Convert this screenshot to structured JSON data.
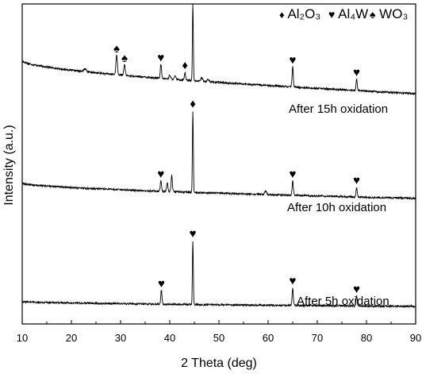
{
  "chart_data": {
    "type": "line",
    "xlabel": "2 Theta (deg)",
    "ylabel": "Intensity (a.u.)",
    "xlim": [
      10,
      90
    ],
    "x_ticks": [
      10,
      20,
      30,
      40,
      50,
      60,
      70,
      80,
      90
    ],
    "y_tick_labels": false,
    "grid": false,
    "legend_position": "top-right",
    "legend": [
      {
        "symbol": "♦",
        "label": "Al₂O₃"
      },
      {
        "symbol": "♥",
        "label": "Al₄W"
      },
      {
        "symbol": "♠",
        "label": "WO₃"
      }
    ],
    "series": [
      {
        "name": "After 15h oxidation",
        "baseline_start": 69,
        "baseline_end": 28,
        "peaks": [
          {
            "x": 22.8,
            "height": 4,
            "width": 0.5,
            "marker": ""
          },
          {
            "x": 29.2,
            "height": 24,
            "width": 0.3,
            "marker": "♠"
          },
          {
            "x": 30.8,
            "height": 13,
            "width": 0.3,
            "marker": "♠"
          },
          {
            "x": 38.2,
            "height": 17,
            "width": 0.25,
            "marker": "♥"
          },
          {
            "x": 40.0,
            "height": 5,
            "width": 0.3,
            "marker": ""
          },
          {
            "x": 41.1,
            "height": 4,
            "width": 0.3,
            "marker": ""
          },
          {
            "x": 43.1,
            "height": 10,
            "width": 0.25,
            "marker": "♦"
          },
          {
            "x": 44.7,
            "height": 97,
            "width": 0.18,
            "marker": "♥"
          },
          {
            "x": 46.5,
            "height": 4,
            "width": 0.4,
            "marker": ""
          },
          {
            "x": 47.8,
            "height": 3,
            "width": 0.4,
            "marker": ""
          },
          {
            "x": 65.0,
            "height": 25,
            "width": 0.25,
            "marker": "♥"
          },
          {
            "x": 78.0,
            "height": 14,
            "width": 0.25,
            "marker": "♥"
          }
        ]
      },
      {
        "name": "After 10h oxidation",
        "baseline_start": 44,
        "baseline_end": 25,
        "peaks": [
          {
            "x": 38.2,
            "height": 13,
            "width": 0.25,
            "marker": "♥"
          },
          {
            "x": 39.5,
            "height": 11,
            "width": 0.25,
            "marker": ""
          },
          {
            "x": 40.4,
            "height": 21,
            "width": 0.25,
            "marker": ""
          },
          {
            "x": 44.7,
            "height": 102,
            "width": 0.18,
            "marker": "♦"
          },
          {
            "x": 59.5,
            "height": 4,
            "width": 0.4,
            "marker": ""
          },
          {
            "x": 65.0,
            "height": 18,
            "width": 0.25,
            "marker": "♥"
          },
          {
            "x": 78.0,
            "height": 12,
            "width": 0.25,
            "marker": "♥"
          }
        ]
      },
      {
        "name": "After 5h oxidation",
        "baseline_start": 28,
        "baseline_end": 22,
        "peaks": [
          {
            "x": 38.3,
            "height": 17,
            "width": 0.25,
            "marker": "♥"
          },
          {
            "x": 44.7,
            "height": 80,
            "width": 0.18,
            "marker": "♥"
          },
          {
            "x": 65.0,
            "height": 22,
            "width": 0.25,
            "marker": "♥"
          },
          {
            "x": 78.0,
            "height": 12,
            "width": 0.25,
            "marker": "♥"
          }
        ]
      }
    ]
  }
}
